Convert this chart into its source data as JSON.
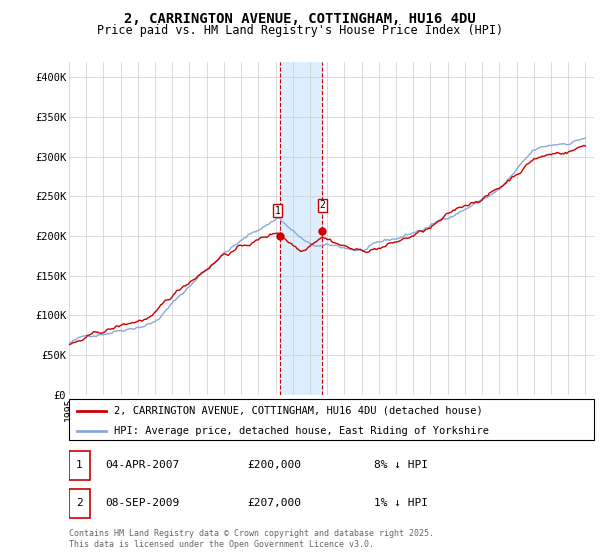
{
  "title": "2, CARRINGTON AVENUE, COTTINGHAM, HU16 4DU",
  "subtitle": "Price paid vs. HM Land Registry's House Price Index (HPI)",
  "xlim_start": 1995.0,
  "xlim_end": 2025.5,
  "ylim": [
    0,
    420000
  ],
  "yticks": [
    0,
    50000,
    100000,
    150000,
    200000,
    250000,
    300000,
    350000,
    400000
  ],
  "ytick_labels": [
    "£0",
    "£50K",
    "£100K",
    "£150K",
    "£200K",
    "£250K",
    "£300K",
    "£350K",
    "£400K"
  ],
  "sale1_year": 2007.25,
  "sale1_value": 200000,
  "sale2_year": 2009.67,
  "sale2_value": 207000,
  "sale1_date": "04-APR-2007",
  "sale1_price": "£200,000",
  "sale1_hpi": "8% ↓ HPI",
  "sale2_date": "08-SEP-2009",
  "sale2_price": "£207,000",
  "sale2_hpi": "1% ↓ HPI",
  "shade_color": "#ddeeff",
  "line_color_property": "#cc0000",
  "line_color_hpi": "#88aadd",
  "grid_color": "#cccccc",
  "background_color": "#ffffff",
  "legend_label_property": "2, CARRINGTON AVENUE, COTTINGHAM, HU16 4DU (detached house)",
  "legend_label_hpi": "HPI: Average price, detached house, East Riding of Yorkshire",
  "footer_text": "Contains HM Land Registry data © Crown copyright and database right 2025.\nThis data is licensed under the Open Government Licence v3.0."
}
